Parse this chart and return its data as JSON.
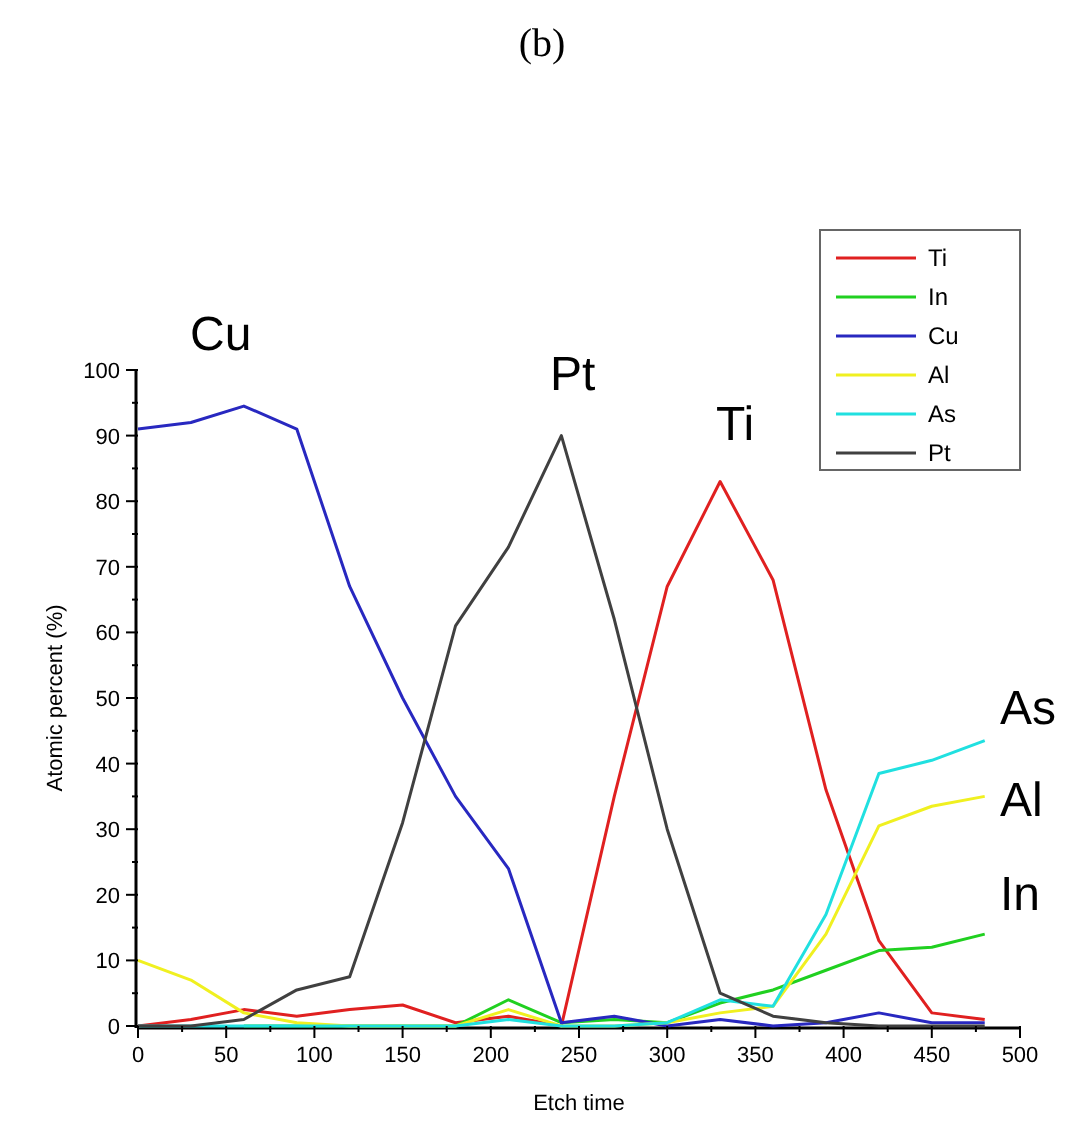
{
  "chart_data": {
    "type": "line",
    "title": "(b)",
    "xlabel": "Etch time",
    "ylabel": "Atomic percent (%)",
    "x": [
      0,
      30,
      60,
      90,
      120,
      150,
      180,
      210,
      240,
      270,
      300,
      330,
      360,
      390,
      420,
      450,
      480
    ],
    "xlim": [
      0,
      500
    ],
    "xticks": [
      0,
      50,
      100,
      150,
      200,
      250,
      300,
      350,
      400,
      450,
      500
    ],
    "ylim": [
      0,
      100
    ],
    "yticks": [
      0,
      10,
      20,
      30,
      40,
      50,
      60,
      70,
      80,
      90,
      100
    ],
    "grid": false,
    "legend": "top right",
    "marker": "none",
    "line_style": "solid",
    "series": [
      {
        "name": "Ti",
        "color": "#e02020",
        "values": [
          0,
          1,
          2.5,
          1.5,
          2.5,
          3.2,
          0.5,
          1.5,
          0,
          35,
          67,
          83,
          68,
          36,
          13,
          2,
          1
        ]
      },
      {
        "name": "In",
        "color": "#20d020",
        "values": [
          null,
          null,
          0,
          0,
          0,
          0,
          0,
          4,
          0.5,
          1,
          0.5,
          3.5,
          5.5,
          8.5,
          11.5,
          12,
          14
        ]
      },
      {
        "name": "Cu",
        "color": "#2828c0",
        "values": [
          91,
          92,
          94.5,
          91,
          67,
          50,
          35,
          24,
          0.5,
          1.5,
          0,
          1,
          0,
          0.5,
          2,
          0.5,
          0.5
        ]
      },
      {
        "name": "Al",
        "color": "#f0f020",
        "values": [
          10,
          7,
          2,
          0.5,
          0,
          0,
          0,
          2.5,
          0,
          0,
          0.5,
          2,
          3,
          14,
          30.5,
          33.5,
          35
        ]
      },
      {
        "name": "As",
        "color": "#20e0e0",
        "values": [
          0,
          0,
          0,
          0,
          0,
          0,
          0,
          1,
          0,
          0,
          0.5,
          4,
          3,
          17,
          38.5,
          40.5,
          43.5
        ]
      },
      {
        "name": "Pt",
        "color": "#404040",
        "values": [
          0,
          0,
          1,
          5.5,
          7.5,
          31,
          61,
          73,
          90,
          62,
          30,
          5,
          1.5,
          0.5,
          0,
          0,
          0
        ]
      }
    ],
    "annotations": [
      "Cu",
      "Pt",
      "Ti",
      "As",
      "Al",
      "In"
    ]
  }
}
